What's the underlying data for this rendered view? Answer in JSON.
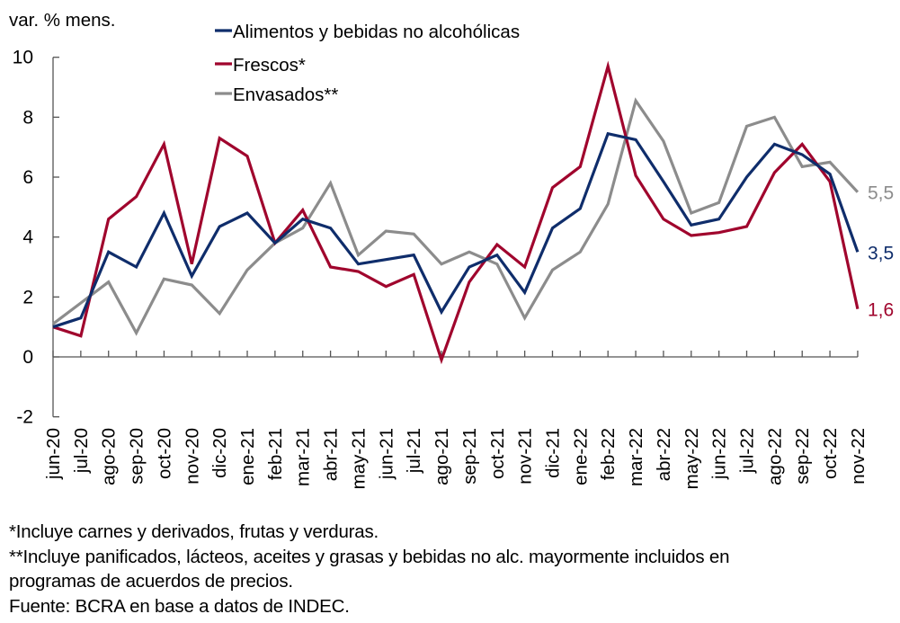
{
  "chart_data": {
    "type": "line",
    "title": "",
    "ylabel": "var. % mens.",
    "xlabel": "",
    "ylim": [
      -2,
      10
    ],
    "yticks": [
      -2,
      0,
      2,
      4,
      6,
      8,
      10
    ],
    "grid": false,
    "legend_position": "top-center",
    "categories": [
      "jun-20",
      "jul-20",
      "ago-20",
      "sep-20",
      "oct-20",
      "nov-20",
      "dic-20",
      "ene-21",
      "feb-21",
      "mar-21",
      "abr-21",
      "may-21",
      "jun-21",
      "jul-21",
      "ago-21",
      "sep-21",
      "oct-21",
      "nov-21",
      "dic-21",
      "ene-22",
      "feb-22",
      "mar-22",
      "abr-22",
      "may-22",
      "jun-22",
      "jul-22",
      "ago-22",
      "sep-22",
      "oct-22",
      "nov-22"
    ],
    "series": [
      {
        "name": "Alimentos y bebidas no alcohólicas",
        "color": "#0f2d6b",
        "values": [
          1.0,
          1.3,
          3.5,
          3.0,
          4.8,
          2.7,
          4.35,
          4.8,
          3.8,
          4.6,
          4.3,
          3.1,
          3.25,
          3.4,
          1.5,
          3.0,
          3.4,
          2.15,
          4.3,
          4.95,
          7.45,
          7.25,
          5.85,
          4.4,
          4.6,
          6.0,
          7.1,
          6.75,
          6.1,
          3.5
        ],
        "end_label": "3,5"
      },
      {
        "name": "Frescos*",
        "color": "#a0052d",
        "values": [
          1.0,
          0.7,
          4.6,
          5.35,
          7.1,
          3.1,
          7.3,
          6.7,
          3.8,
          4.9,
          3.0,
          2.85,
          2.35,
          2.75,
          -0.1,
          2.5,
          3.75,
          3.0,
          5.65,
          6.35,
          9.7,
          6.05,
          4.6,
          4.05,
          4.15,
          4.35,
          6.15,
          7.1,
          5.85,
          1.6
        ],
        "end_label": "1,6"
      },
      {
        "name": "Envasados**",
        "color": "#8c8c8c",
        "values": [
          1.1,
          1.8,
          2.5,
          0.8,
          2.6,
          2.4,
          1.45,
          2.9,
          3.8,
          4.3,
          5.8,
          3.4,
          4.2,
          4.1,
          3.1,
          3.5,
          3.1,
          1.3,
          2.9,
          3.5,
          5.1,
          8.55,
          7.2,
          4.8,
          5.15,
          7.7,
          8.0,
          6.35,
          6.5,
          5.5
        ],
        "end_label": "5,5"
      }
    ]
  },
  "notes": [
    "*Incluye carnes y derivados, frutas y verduras.",
    "**Incluye panificados, lácteos, aceites y grasas y bebidas no alc. mayormente incluidos en",
    "programas de acuerdos de precios.",
    "Fuente: BCRA en base a datos de INDEC."
  ]
}
